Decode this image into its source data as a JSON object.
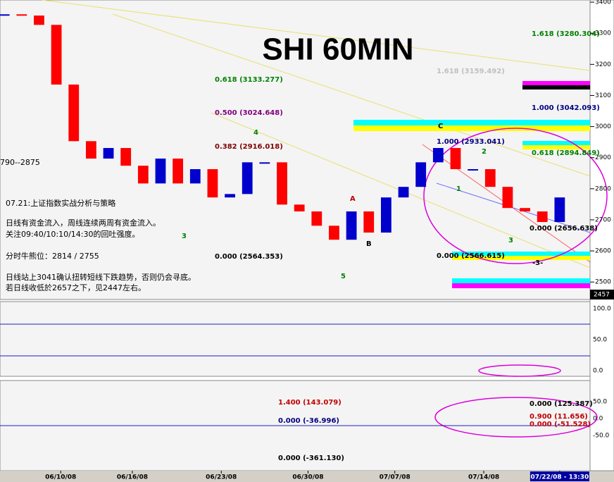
{
  "chart_data": {
    "type": "candlestick",
    "title": "SHI 60MIN",
    "x": [
      0,
      4,
      8,
      12,
      16,
      20,
      24,
      28,
      32,
      36,
      40,
      44,
      48,
      52,
      56,
      60,
      64,
      68,
      72,
      76,
      80,
      84,
      88,
      92,
      96,
      100,
      104,
      108,
      112,
      116,
      120,
      124,
      128
    ],
    "values": [
      3361,
      3357,
      3327,
      3135,
      2953,
      2897,
      2931,
      2874,
      2817,
      2897,
      2817,
      2863,
      2772,
      2783,
      2885,
      2885,
      2749,
      2727,
      2681,
      2636,
      2727,
      2659,
      2772,
      2806,
      2885,
      2931,
      2863,
      2863,
      2806,
      2738,
      2727,
      2693,
      2772
    ],
    "up_color": "#0000cc",
    "down_color": "#ff0000",
    "xlim": [
      -1,
      135
    ],
    "ylim": [
      2437,
      3407
    ],
    "yticks": [
      3400,
      3300,
      3200,
      3100,
      3000,
      2900,
      2800,
      2700,
      2600,
      2500
    ],
    "last_price": "2457",
    "xticks": [
      {
        "value": 13,
        "label": "06/10/08"
      },
      {
        "value": 29.5,
        "label": "06/16/08"
      },
      {
        "value": 50,
        "label": "06/23/08"
      },
      {
        "value": 70,
        "label": "06/30/08"
      },
      {
        "value": 90,
        "label": "07/07/08"
      },
      {
        "value": 110.5,
        "label": "07/14/08"
      },
      {
        "value": 128,
        "label": "07/22/08 - 13:30"
      }
    ],
    "range_note": "790--2875",
    "notes": [
      "07.21:上证指数实战分析与策略",
      "日线有资金流入，周线连续两周有资金流入。",
      "关注09:40/10:10/14:30的回吐强度。",
      "分时牛熊位：2814 / 2755",
      "日线站上3041确认扭转短线下跌趋势，否则仍会寻底。",
      "若日线收低於2657之下，见2447左右。"
    ],
    "fib_labels": [
      "1.618 (3280.304)",
      "1.618 (3159.492)",
      "0.618 (3133.277)",
      "1.000 (3042.093)",
      "0.500 (3024.648)",
      "0.382 (2916.018)",
      "1.000 (2933.041)",
      "0.618 (2894.849)",
      "0.000 (2656.638)",
      "0.000 (2564.353)",
      "0.000 (2566.615)"
    ],
    "wave_labels": [
      "4",
      "3",
      "5",
      "A",
      "B",
      "C",
      "1",
      "2",
      "3",
      "-3-"
    ],
    "stoch_ticks": [
      "100.0",
      "50.0",
      "0.0"
    ],
    "macd_labels": [
      "1.400 (143.079)",
      "0.000 (-36.996)",
      "0.000 (-361.130)",
      "0.000 (125.387)",
      "0.900 (11.656)",
      "0.000 (-51.528)"
    ],
    "macd_ticks": [
      "50.0",
      "0.0",
      "-50.0"
    ]
  }
}
